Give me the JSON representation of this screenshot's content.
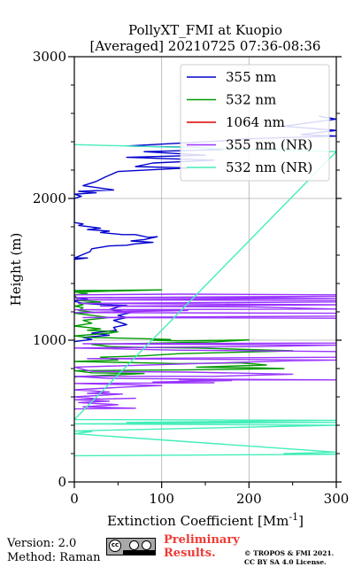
{
  "chart_data": {
    "type": "line",
    "title": [
      "PollyXT_FMI at Kuopio",
      "[Averaged] 20210725 07:36-08:36"
    ],
    "xlabel": "Extinction Coefficient [Mm",
    "xlabel_sup": "-1",
    "xlabel_close": "]",
    "ylabel": "Height (m)",
    "xlim": [
      0,
      300
    ],
    "ylim": [
      0,
      3000
    ],
    "xticks": [
      "0",
      "100",
      "200",
      "300"
    ],
    "yticks": [
      "0",
      "1000",
      "2000",
      "3000"
    ],
    "grid": true,
    "legend_position": "top-right",
    "series": [
      {
        "name": "355 nm",
        "color": "#0000cc",
        "points": [
          [
            280,
            2580
          ],
          [
            300,
            2560
          ],
          [
            240,
            2510
          ],
          [
            300,
            2480
          ],
          [
            260,
            2450
          ],
          [
            300,
            2440
          ],
          [
            195,
            2420
          ],
          [
            165,
            2405
          ],
          [
            60,
            2370
          ],
          [
            140,
            2360
          ],
          [
            170,
            2345
          ],
          [
            80,
            2330
          ],
          [
            150,
            2305
          ],
          [
            60,
            2290
          ],
          [
            160,
            2270
          ],
          [
            90,
            2250
          ],
          [
            70,
            2225
          ],
          [
            130,
            2215
          ],
          [
            50,
            2190
          ],
          [
            35,
            2150
          ],
          [
            25,
            2120
          ],
          [
            10,
            2090
          ],
          [
            45,
            2060
          ],
          [
            5,
            2050
          ],
          [
            25,
            2040
          ],
          [
            0,
            2030
          ],
          [
            8,
            2015
          ],
          [
            0,
            2000
          ],
          [
            0,
            1830
          ],
          [
            10,
            1820
          ],
          [
            5,
            1810
          ],
          [
            30,
            1790
          ],
          [
            15,
            1780
          ],
          [
            40,
            1770
          ],
          [
            30,
            1760
          ],
          [
            55,
            1745
          ],
          [
            70,
            1745
          ],
          [
            85,
            1725
          ],
          [
            95,
            1730
          ],
          [
            80,
            1710
          ],
          [
            65,
            1700
          ],
          [
            90,
            1690
          ],
          [
            70,
            1680
          ],
          [
            60,
            1670
          ],
          [
            40,
            1665
          ],
          [
            30,
            1655
          ],
          [
            20,
            1645
          ],
          [
            18,
            1625
          ],
          [
            8,
            1600
          ],
          [
            0,
            1580
          ],
          [
            15,
            1580
          ],
          [
            0,
            1570
          ],
          [
            0,
            1300
          ],
          [
            15,
            1290
          ],
          [
            0,
            1275
          ],
          [
            10,
            1260
          ],
          [
            35,
            1250
          ],
          [
            60,
            1245
          ],
          [
            50,
            1235
          ],
          [
            40,
            1215
          ],
          [
            65,
            1195
          ],
          [
            50,
            1175
          ],
          [
            60,
            1160
          ],
          [
            45,
            1140
          ],
          [
            55,
            1120
          ],
          [
            60,
            1110
          ],
          [
            45,
            1090
          ],
          [
            48,
            1070
          ],
          [
            20,
            1050
          ],
          [
            40,
            1035
          ],
          [
            10,
            1020
          ],
          [
            20,
            1005
          ],
          [
            0,
            990
          ],
          [
            0,
            980
          ]
        ]
      },
      {
        "name": "532 nm",
        "color": "#009900",
        "points": [
          [
            0,
            1350
          ],
          [
            100,
            1355
          ],
          [
            0,
            1340
          ],
          [
            15,
            1330
          ],
          [
            0,
            1320
          ],
          [
            5,
            1280
          ],
          [
            30,
            1270
          ],
          [
            5,
            1260
          ],
          [
            10,
            1250
          ],
          [
            0,
            1240
          ],
          [
            10,
            1230
          ],
          [
            5,
            1210
          ],
          [
            25,
            1195
          ],
          [
            0,
            1190
          ],
          [
            40,
            1160
          ],
          [
            10,
            1140
          ],
          [
            20,
            1120
          ],
          [
            0,
            1100
          ],
          [
            30,
            1080
          ],
          [
            15,
            1070
          ],
          [
            50,
            1060
          ],
          [
            40,
            1050
          ],
          [
            0,
            1030
          ],
          [
            15,
            1020
          ],
          [
            85,
            1010
          ],
          [
            110,
            1005
          ],
          [
            90,
            1000
          ],
          [
            120,
            995
          ],
          [
            200,
            1002
          ],
          [
            160,
            988
          ],
          [
            20,
            970
          ],
          [
            40,
            955
          ],
          [
            70,
            950
          ],
          [
            140,
            945
          ],
          [
            250,
            925
          ],
          [
            120,
            905
          ],
          [
            80,
            890
          ],
          [
            30,
            880
          ],
          [
            50,
            860
          ],
          [
            0,
            850
          ],
          [
            120,
            835
          ],
          [
            190,
            840
          ],
          [
            220,
            825
          ],
          [
            140,
            810
          ],
          [
            210,
            805
          ],
          [
            240,
            800
          ],
          [
            120,
            790
          ],
          [
            0,
            785
          ],
          [
            20,
            770
          ],
          [
            80,
            765
          ],
          [
            10,
            745
          ],
          [
            0,
            740
          ]
        ]
      },
      {
        "name": "1064 nm",
        "color": "#dd0000",
        "points": []
      },
      {
        "name": "355 nm (NR)",
        "color": "#9933ff",
        "points": [
          [
            0,
            1320
          ],
          [
            120,
            1325
          ],
          [
            300,
            1320
          ],
          [
            300,
            1310
          ],
          [
            0,
            1300
          ],
          [
            205,
            1300
          ],
          [
            300,
            1295
          ],
          [
            0,
            1285
          ],
          [
            300,
            1280
          ],
          [
            300,
            1270
          ],
          [
            5,
            1260
          ],
          [
            300,
            1250
          ],
          [
            30,
            1240
          ],
          [
            200,
            1235
          ],
          [
            300,
            1220
          ],
          [
            0,
            1215
          ],
          [
            130,
            1210
          ],
          [
            0,
            1195
          ],
          [
            300,
            1190
          ],
          [
            300,
            1170
          ],
          [
            10,
            1160
          ],
          [
            300,
            1155
          ],
          [
            300,
            1130
          ],
          [
            300,
            980
          ],
          [
            10,
            975
          ],
          [
            300,
            965
          ],
          [
            210,
            955
          ],
          [
            0,
            945
          ],
          [
            115,
            930
          ],
          [
            300,
            920
          ],
          [
            300,
            880
          ],
          [
            15,
            870
          ],
          [
            300,
            860
          ],
          [
            250,
            855
          ],
          [
            0,
            810
          ],
          [
            20,
            780
          ],
          [
            130,
            775
          ],
          [
            250,
            760
          ],
          [
            160,
            745
          ],
          [
            0,
            745
          ],
          [
            40,
            730
          ],
          [
            300,
            720
          ],
          [
            120,
            720
          ],
          [
            180,
            715
          ],
          [
            90,
            705
          ],
          [
            160,
            700
          ],
          [
            0,
            695
          ],
          [
            100,
            680
          ],
          [
            60,
            670
          ],
          [
            0,
            650
          ],
          [
            40,
            635
          ],
          [
            15,
            625
          ],
          [
            55,
            620
          ],
          [
            0,
            600
          ],
          [
            30,
            585
          ],
          [
            70,
            590
          ],
          [
            0,
            580
          ],
          [
            40,
            570
          ],
          [
            5,
            560
          ],
          [
            50,
            545
          ],
          [
            10,
            530
          ],
          [
            70,
            520
          ],
          [
            0,
            515
          ]
        ]
      },
      {
        "name": "532 nm (NR)",
        "color": "#44eebb",
        "points": [
          [
            0,
            2380
          ],
          [
            300,
            2330
          ],
          [
            0,
            440
          ],
          [
            300,
            435
          ],
          [
            60,
            420
          ],
          [
            300,
            420
          ],
          [
            0,
            410
          ],
          [
            300,
            400
          ],
          [
            0,
            360
          ],
          [
            20,
            355
          ],
          [
            0,
            340
          ],
          [
            300,
            210
          ],
          [
            240,
            200
          ],
          [
            300,
            195
          ],
          [
            0,
            185
          ]
        ]
      }
    ]
  },
  "footer": {
    "version": "Version: 2.0",
    "method": "Method: Raman",
    "preliminary_line1": "Preliminary",
    "preliminary_line2": "Results.",
    "copyright_line1": "© TROPOS & FMI 2021.",
    "copyright_line2": "CC BY SA 4.0 License."
  }
}
